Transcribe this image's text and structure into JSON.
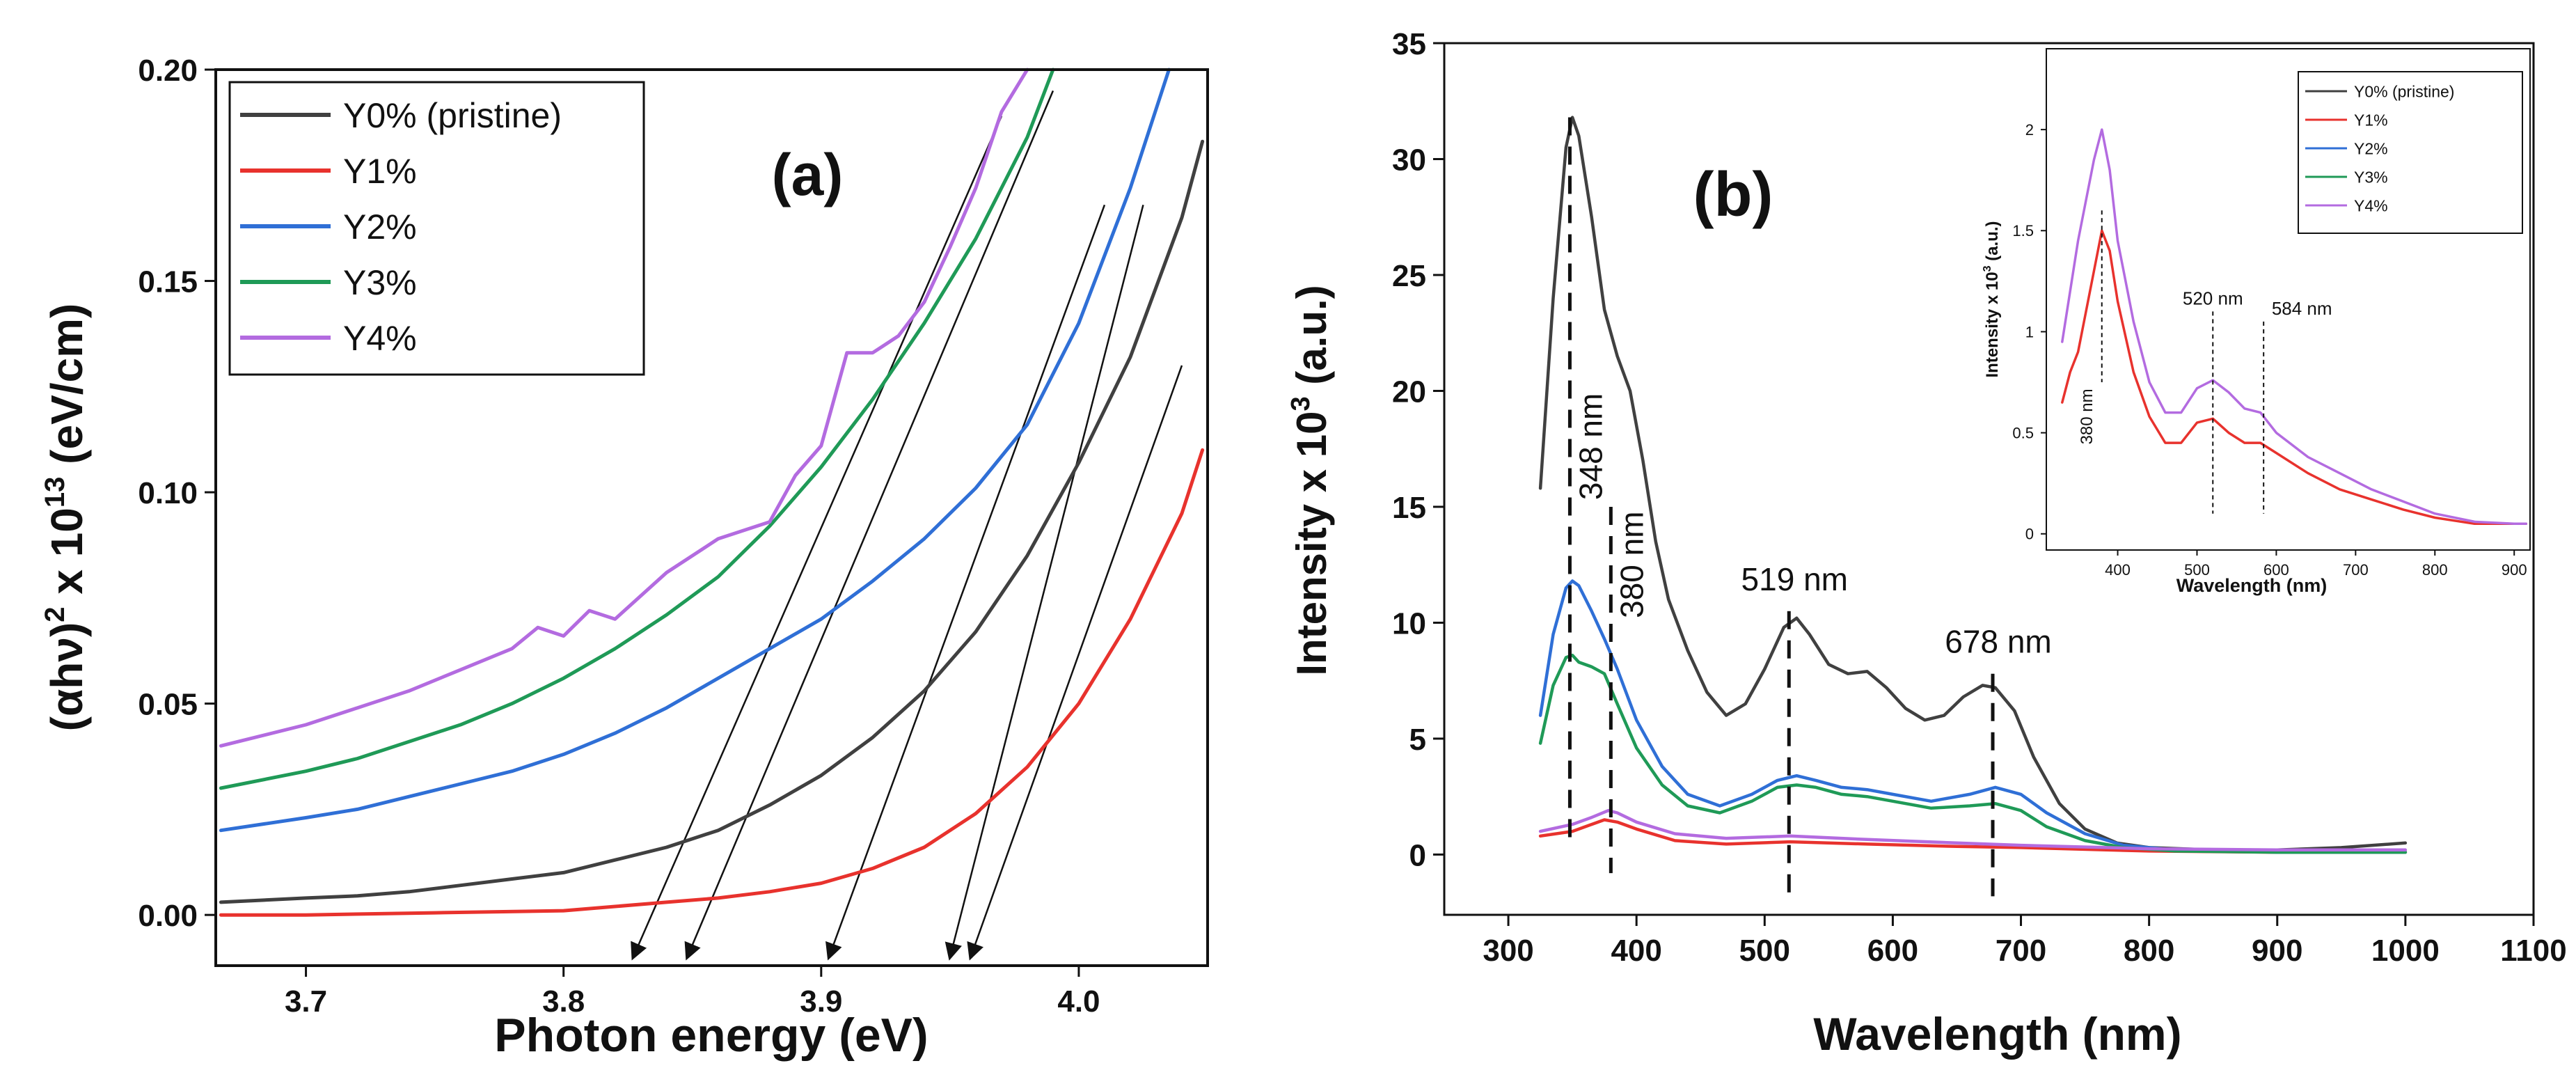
{
  "chart_data": [
    {
      "type": "line",
      "panel_label": "(a)",
      "xlabel": "Photon energy (eV)",
      "ylabel_main": "(αhν)",
      "ylabel_sup": "2",
      "ylabel_mid": " x 10",
      "ylabel_sup2": "13",
      "ylabel_unit": " (eV/cm)",
      "xlim": [
        3.665,
        4.05
      ],
      "ylim": [
        -0.012,
        0.2
      ],
      "x_ticks": [
        3.7,
        3.8,
        3.9,
        4.0
      ],
      "x_tick_labels": [
        "3.7",
        "3.8",
        "3.9",
        "4.0"
      ],
      "y_ticks": [
        0.0,
        0.05,
        0.1,
        0.15,
        0.2
      ],
      "y_tick_labels": [
        "0.00",
        "0.05",
        "0.10",
        "0.15",
        "0.20"
      ],
      "legend_position": "top-left",
      "series": [
        {
          "name": "Y0% (pristine)",
          "color": "#404040",
          "x": [
            3.667,
            3.7,
            3.72,
            3.74,
            3.76,
            3.78,
            3.8,
            3.82,
            3.84,
            3.86,
            3.88,
            3.9,
            3.92,
            3.94,
            3.96,
            3.98,
            4.0,
            4.02,
            4.04,
            4.048
          ],
          "y": [
            0.003,
            0.004,
            0.0045,
            0.0055,
            0.007,
            0.0085,
            0.01,
            0.013,
            0.016,
            0.02,
            0.026,
            0.033,
            0.042,
            0.053,
            0.067,
            0.085,
            0.107,
            0.132,
            0.165,
            0.183
          ]
        },
        {
          "name": "Y1%",
          "color": "#e8322d",
          "x": [
            3.667,
            3.7,
            3.75,
            3.8,
            3.82,
            3.84,
            3.86,
            3.88,
            3.9,
            3.92,
            3.94,
            3.96,
            3.98,
            4.0,
            4.02,
            4.04,
            4.048
          ],
          "y": [
            0.0,
            0.0,
            0.0005,
            0.001,
            0.002,
            0.003,
            0.004,
            0.0055,
            0.0075,
            0.011,
            0.016,
            0.024,
            0.035,
            0.05,
            0.07,
            0.095,
            0.11
          ]
        },
        {
          "name": "Y2%",
          "color": "#2f6fd6",
          "x": [
            3.667,
            3.7,
            3.72,
            3.74,
            3.76,
            3.78,
            3.8,
            3.82,
            3.84,
            3.86,
            3.88,
            3.9,
            3.92,
            3.94,
            3.96,
            3.98,
            4.0,
            4.02,
            4.035
          ],
          "y": [
            0.02,
            0.023,
            0.025,
            0.028,
            0.031,
            0.034,
            0.038,
            0.043,
            0.049,
            0.056,
            0.063,
            0.07,
            0.079,
            0.089,
            0.101,
            0.116,
            0.14,
            0.172,
            0.2
          ]
        },
        {
          "name": "Y3%",
          "color": "#1f9a57",
          "x": [
            3.667,
            3.7,
            3.72,
            3.74,
            3.76,
            3.78,
            3.8,
            3.82,
            3.84,
            3.86,
            3.88,
            3.9,
            3.92,
            3.94,
            3.96,
            3.98,
            3.99
          ],
          "y": [
            0.03,
            0.034,
            0.037,
            0.041,
            0.045,
            0.05,
            0.056,
            0.063,
            0.071,
            0.08,
            0.092,
            0.106,
            0.122,
            0.14,
            0.16,
            0.184,
            0.2
          ]
        },
        {
          "name": "Y4%",
          "color": "#b36be0",
          "x": [
            3.667,
            3.7,
            3.72,
            3.74,
            3.76,
            3.78,
            3.79,
            3.8,
            3.81,
            3.82,
            3.84,
            3.86,
            3.88,
            3.89,
            3.9,
            3.91,
            3.92,
            3.93,
            3.94,
            3.95,
            3.96,
            3.97,
            3.98
          ],
          "y": [
            0.04,
            0.045,
            0.049,
            0.053,
            0.058,
            0.063,
            0.068,
            0.066,
            0.072,
            0.07,
            0.081,
            0.089,
            0.093,
            0.104,
            0.111,
            0.133,
            0.133,
            0.137,
            0.145,
            0.158,
            0.172,
            0.19,
            0.2
          ]
        }
      ],
      "tangent_lines": [
        {
          "from": [
            3.97,
            0.189
          ],
          "to": [
            3.827,
            -0.01
          ]
        },
        {
          "from": [
            3.99,
            0.195
          ],
          "to": [
            3.848,
            -0.01
          ]
        },
        {
          "from": [
            4.01,
            0.168
          ],
          "to": [
            3.903,
            -0.01
          ]
        },
        {
          "from": [
            4.025,
            0.168
          ],
          "to": [
            3.95,
            -0.01
          ]
        },
        {
          "from": [
            4.04,
            0.13
          ],
          "to": [
            3.958,
            -0.01
          ]
        }
      ]
    },
    {
      "type": "line",
      "panel_label": "(b)",
      "xlabel": "Wavelength (nm)",
      "ylabel": "Intensity x 10",
      "ylabel_sup": "3",
      "ylabel_unit": " (a.u.)",
      "xlim": [
        250,
        1100
      ],
      "ylim": [
        -2.6,
        35
      ],
      "x_ticks": [
        300,
        400,
        500,
        600,
        700,
        800,
        900,
        1000,
        1100
      ],
      "x_tick_labels": [
        "300",
        "400",
        "500",
        "600",
        "700",
        "800",
        "900",
        "1000",
        "1100"
      ],
      "y_ticks": [
        0,
        5,
        10,
        15,
        20,
        25,
        30,
        35
      ],
      "y_tick_labels": [
        "0",
        "5",
        "10",
        "15",
        "20",
        "25",
        "30",
        "35"
      ],
      "series": [
        {
          "name": "Y0% (pristine)",
          "color": "#404040",
          "x": [
            325,
            335,
            345,
            350,
            355,
            365,
            375,
            385,
            395,
            405,
            415,
            425,
            440,
            455,
            470,
            485,
            500,
            515,
            525,
            535,
            550,
            565,
            580,
            595,
            610,
            625,
            640,
            655,
            670,
            680,
            695,
            710,
            730,
            750,
            775,
            800,
            850,
            900,
            950,
            1000
          ],
          "y": [
            15.8,
            24,
            30.5,
            31.8,
            31,
            27.5,
            23.5,
            21.5,
            20,
            17,
            13.5,
            11,
            8.8,
            7,
            6,
            6.5,
            8,
            9.8,
            10.2,
            9.5,
            8.2,
            7.8,
            7.9,
            7.2,
            6.3,
            5.8,
            6,
            6.8,
            7.3,
            7.2,
            6.2,
            4.2,
            2.2,
            1.1,
            0.5,
            0.3,
            0.2,
            0.2,
            0.3,
            0.5
          ]
        },
        {
          "name": "Y1%",
          "color": "#e8322d",
          "x": [
            325,
            350,
            365,
            375,
            385,
            400,
            430,
            470,
            520,
            580,
            650,
            700,
            800,
            900,
            1000
          ],
          "y": [
            0.8,
            1.0,
            1.3,
            1.5,
            1.4,
            1.1,
            0.6,
            0.45,
            0.55,
            0.45,
            0.35,
            0.3,
            0.15,
            0.1,
            0.1
          ]
        },
        {
          "name": "Y2%",
          "color": "#2f6fd6",
          "x": [
            325,
            335,
            345,
            350,
            355,
            365,
            375,
            385,
            400,
            420,
            440,
            465,
            490,
            510,
            525,
            540,
            560,
            580,
            600,
            630,
            660,
            680,
            700,
            720,
            750,
            780,
            820,
            900,
            1000
          ],
          "y": [
            6,
            9.5,
            11.5,
            11.8,
            11.6,
            10.5,
            9.3,
            8,
            5.8,
            3.8,
            2.6,
            2.1,
            2.6,
            3.2,
            3.4,
            3.2,
            2.9,
            2.8,
            2.6,
            2.3,
            2.6,
            2.9,
            2.6,
            1.8,
            0.9,
            0.4,
            0.2,
            0.1,
            0.1
          ]
        },
        {
          "name": "Y3%",
          "color": "#1f9a57",
          "x": [
            325,
            335,
            345,
            350,
            355,
            365,
            375,
            385,
            400,
            420,
            440,
            465,
            490,
            510,
            525,
            540,
            560,
            580,
            600,
            630,
            660,
            680,
            700,
            720,
            750,
            780,
            820,
            900,
            1000
          ],
          "y": [
            4.8,
            7.3,
            8.5,
            8.6,
            8.3,
            8.1,
            7.8,
            6.5,
            4.6,
            3.0,
            2.1,
            1.8,
            2.3,
            2.9,
            3.0,
            2.9,
            2.6,
            2.5,
            2.3,
            2.0,
            2.1,
            2.2,
            1.9,
            1.2,
            0.6,
            0.3,
            0.15,
            0.1,
            0.1
          ]
        },
        {
          "name": "Y4%",
          "color": "#b36be0",
          "x": [
            325,
            350,
            365,
            378,
            385,
            400,
            430,
            470,
            520,
            580,
            650,
            700,
            800,
            900,
            1000
          ],
          "y": [
            1.0,
            1.3,
            1.6,
            1.9,
            1.8,
            1.4,
            0.9,
            0.7,
            0.8,
            0.65,
            0.5,
            0.4,
            0.25,
            0.2,
            0.2
          ]
        }
      ],
      "annotations": [
        {
          "text": "348 nm",
          "x": 348,
          "rotated": true
        },
        {
          "text": "380 nm",
          "x": 380,
          "rotated": true
        },
        {
          "text": "519 nm",
          "x": 519,
          "rotated": false
        },
        {
          "text": "678 nm",
          "x": 678,
          "rotated": false
        }
      ]
    },
    {
      "type": "line",
      "panel_label": "inset",
      "xlabel": "Wavelength (nm)",
      "ylabel": "Intensity x 10",
      "ylabel_sup": "3",
      "ylabel_unit": " (a.u.)",
      "xlim": [
        310,
        920
      ],
      "ylim": [
        -0.08,
        2.4
      ],
      "x_ticks": [
        400,
        500,
        600,
        700,
        800,
        900
      ],
      "x_tick_labels": [
        "400",
        "500",
        "600",
        "700",
        "800",
        "900"
      ],
      "y_ticks": [
        0,
        0.5,
        1,
        1.5,
        2
      ],
      "y_tick_labels": [
        "0",
        "0.5",
        "1",
        "1.5",
        "2"
      ],
      "series": [
        {
          "name": "Y0% (pristine)",
          "color": "#404040",
          "x": [],
          "y": []
        },
        {
          "name": "Y1%",
          "color": "#e8322d",
          "x": [
            330,
            340,
            350,
            360,
            370,
            380,
            390,
            400,
            420,
            440,
            460,
            480,
            500,
            520,
            540,
            560,
            580,
            600,
            640,
            680,
            720,
            760,
            800,
            850,
            900,
            915
          ],
          "y": [
            0.65,
            0.8,
            0.9,
            1.1,
            1.3,
            1.5,
            1.4,
            1.15,
            0.8,
            0.58,
            0.45,
            0.45,
            0.55,
            0.57,
            0.5,
            0.45,
            0.45,
            0.4,
            0.3,
            0.22,
            0.17,
            0.12,
            0.08,
            0.05,
            0.05,
            0.05
          ]
        },
        {
          "name": "Y2%",
          "color": "#2f6fd6",
          "x": [],
          "y": []
        },
        {
          "name": "Y3%",
          "color": "#1f9a57",
          "x": [],
          "y": []
        },
        {
          "name": "Y4%",
          "color": "#b36be0",
          "x": [
            330,
            340,
            350,
            360,
            370,
            380,
            390,
            400,
            420,
            440,
            460,
            480,
            500,
            520,
            540,
            560,
            580,
            600,
            640,
            680,
            720,
            760,
            800,
            850,
            900,
            915
          ],
          "y": [
            0.95,
            1.2,
            1.45,
            1.65,
            1.85,
            2.0,
            1.8,
            1.45,
            1.05,
            0.75,
            0.6,
            0.6,
            0.72,
            0.76,
            0.7,
            0.62,
            0.6,
            0.5,
            0.38,
            0.3,
            0.22,
            0.16,
            0.1,
            0.06,
            0.05,
            0.05
          ]
        }
      ],
      "annotations": [
        {
          "text": "380 nm",
          "x": 380,
          "rotated": true
        },
        {
          "text": "520 nm",
          "x": 520,
          "rotated": false
        },
        {
          "text": "584 nm",
          "x": 584,
          "rotated": false
        }
      ]
    }
  ]
}
